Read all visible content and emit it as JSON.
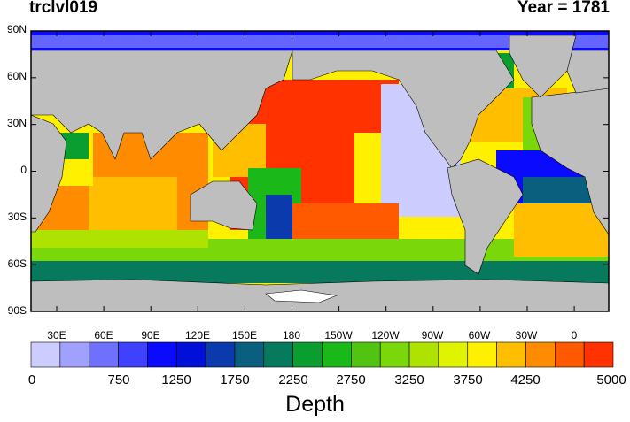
{
  "title_left": "trclvl019",
  "title_right": "Year = 1781",
  "lat_labels": [
    "90N",
    "60N",
    "30N",
    "0",
    "30S",
    "60S",
    "90S"
  ],
  "lon_labels": [
    "30E",
    "60E",
    "90E",
    "120E",
    "150E",
    "180",
    "150W",
    "120W",
    "90W",
    "60W",
    "30W",
    "0"
  ],
  "colorbar": {
    "colors": [
      "#ccccff",
      "#a0a0ff",
      "#7070ff",
      "#4040ff",
      "#0a0aff",
      "#0010d8",
      "#0a3aac",
      "#0a5e7e",
      "#077a5e",
      "#0a9e30",
      "#1bb81a",
      "#50c410",
      "#7ad80a",
      "#aee200",
      "#e0f400",
      "#fff000",
      "#ffbe00",
      "#ff8c00",
      "#ff5a00",
      "#ff3200"
    ],
    "labels": [
      "0",
      "750",
      "1250",
      "1750",
      "2250",
      "2750",
      "3250",
      "3750",
      "4250",
      "5000"
    ],
    "title": "Depth"
  }
}
